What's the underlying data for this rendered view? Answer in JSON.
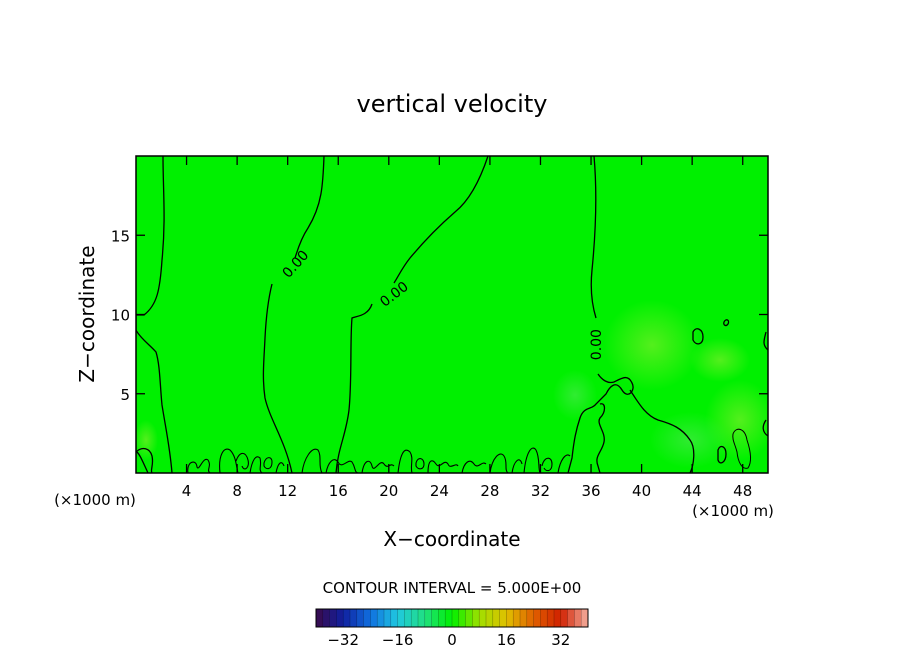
{
  "chart_data": {
    "type": "heatmap",
    "title": "vertical velocity",
    "xlabel": "X−coordinate",
    "ylabel": "Z−coordinate",
    "x_unit_left": "(×1000 m)",
    "x_unit_right": "(×1000 m)",
    "xlim": [
      0,
      50
    ],
    "ylim": [
      0,
      20
    ],
    "x_ticks": [
      4,
      8,
      12,
      16,
      20,
      24,
      28,
      32,
      36,
      40,
      44,
      48
    ],
    "y_ticks": [
      5,
      10,
      15
    ],
    "contour_interval_text": "CONTOUR INTERVAL = 5.000E+00",
    "field_color": "#00f000",
    "contour_color": "#000000",
    "contour_labels": [
      {
        "text": "0.00",
        "x": 12.6,
        "y": 13.2,
        "angle": -48
      },
      {
        "text": "0.00",
        "x": 20.4,
        "y": 11.3,
        "angle": -38
      },
      {
        "text": "0.00",
        "x": 36.4,
        "y": 8.1,
        "angle": -90
      }
    ],
    "colorbar": {
      "min": -40,
      "max": 40,
      "ticks": [
        -32,
        -16,
        0,
        16,
        32
      ],
      "tick_labels": [
        "−32",
        "−16",
        "0",
        "16",
        "32"
      ],
      "stops": [
        "#3a0a4a",
        "#1020a0",
        "#1070e0",
        "#20c8e0",
        "#20e080",
        "#00f000",
        "#a0e000",
        "#e0c000",
        "#e06000",
        "#d02000",
        "#f4b0a0"
      ]
    }
  }
}
